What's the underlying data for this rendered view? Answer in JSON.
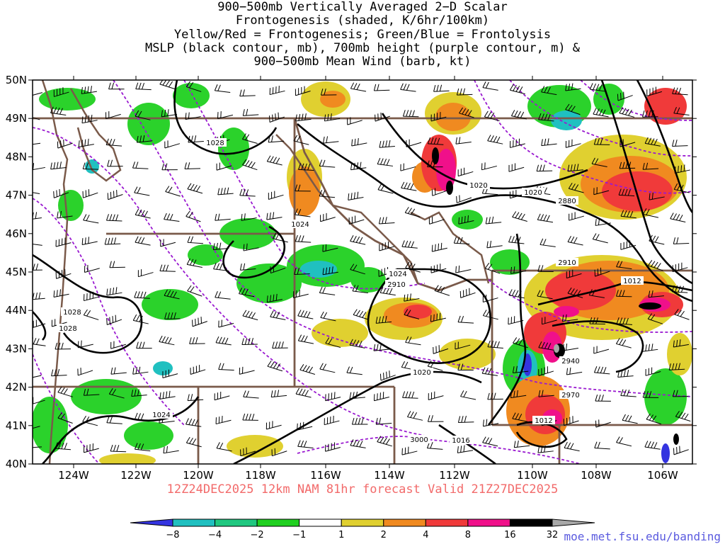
{
  "title_lines": [
    "900−500mb Vertically Averaged 2−D Scalar",
    "Frontogenesis (shaded, K/6hr/100km)",
    "Yellow/Red = Frontogenesis;  Green/Blue = Frontolysis",
    "MSLP (black contour, mb), 700mb height (purple contour, m) &",
    "900−500mb Mean Wind (barb, kt)"
  ],
  "footer": "12Z24DEC2025 12km NAM 81hr forecast Valid 21Z27DEC2025",
  "credit": "moe.met.fsu.edu/banding",
  "lat_labels": [
    "50N",
    "49N",
    "48N",
    "47N",
    "46N",
    "45N",
    "44N",
    "43N",
    "42N",
    "41N",
    "40N"
  ],
  "lon_labels": [
    "124W",
    "122W",
    "120W",
    "118W",
    "116W",
    "114W",
    "112W",
    "110W",
    "108W",
    "106W"
  ],
  "legend": {
    "labels": [
      "−8",
      "−4",
      "−2",
      "−1",
      "1",
      "2",
      "4",
      "8",
      "16",
      "32"
    ],
    "colors": [
      "#3434e0",
      "#20c0c0",
      "#20c880",
      "#20d020",
      "#ffffff",
      "#e0d030",
      "#f08a20",
      "#f03a3a",
      "#f0108a",
      "#000000",
      "#a8a8a8"
    ]
  },
  "mslp_labels": [
    "1028",
    "1024",
    "1024",
    "1020",
    "1028",
    "1028",
    "1020",
    "1020",
    "1012",
    "1012",
    "1016",
    "1024"
  ],
  "height_labels": [
    "2880",
    "2910",
    "2910",
    "2940",
    "2970",
    "3000"
  ],
  "colors": {
    "state_border": "#7a5a4a",
    "mslp": "#000000",
    "height": "#9a1ad0",
    "footer": "#f26a6a",
    "credit": "#5a5adf"
  }
}
